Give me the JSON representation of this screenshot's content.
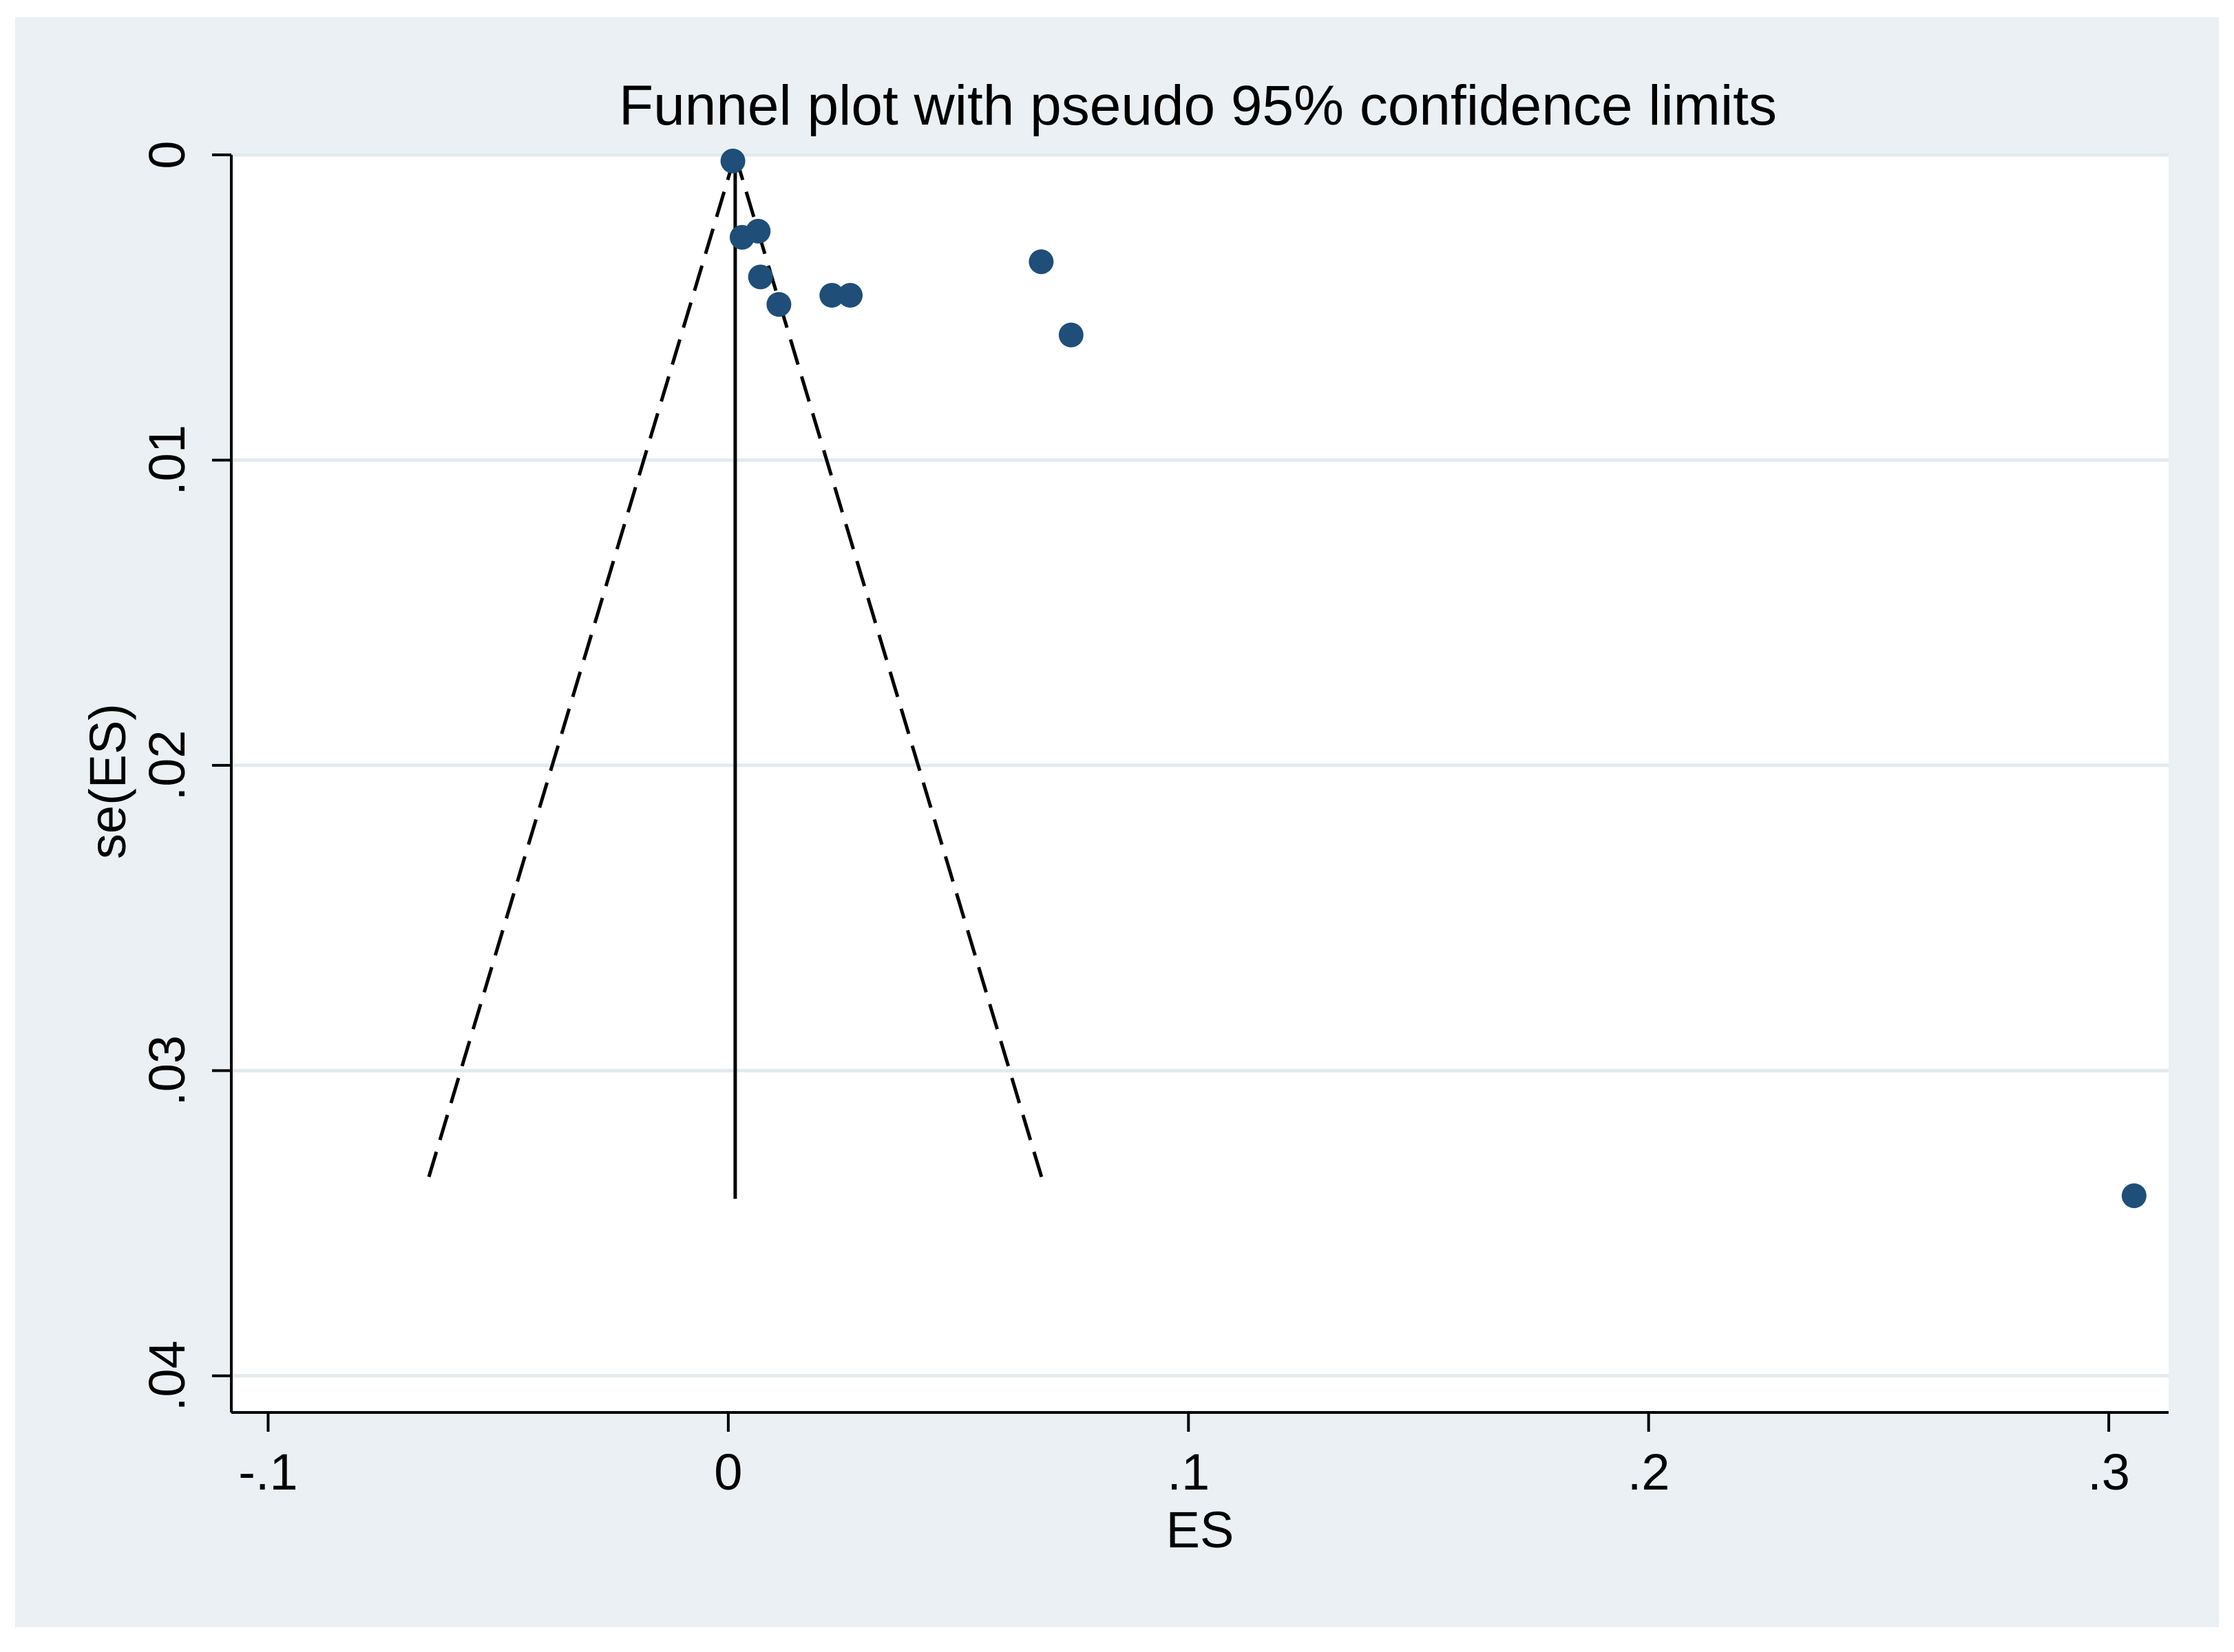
{
  "chart_data": {
    "type": "scatter",
    "title": "Funnel plot with pseudo 95% confidence limits",
    "xlabel": "ES",
    "ylabel": "se(ES)",
    "xlim": [
      -0.108,
      0.313
    ],
    "ylim": [
      0,
      0.0412
    ],
    "y_reversed": true,
    "x_ticks": [
      -0.1,
      0,
      0.1,
      0.2,
      0.3
    ],
    "x_tick_labels": [
      "-.1",
      "0",
      ".1",
      ".2",
      ".3"
    ],
    "y_ticks": [
      0,
      0.01,
      0.02,
      0.03,
      0.04
    ],
    "y_tick_labels": [
      "0",
      ".01",
      ".02",
      ".03",
      ".04"
    ],
    "grid": "horizontal",
    "legend": "none",
    "points": [
      {
        "x": 0.001,
        "y": 0.0002
      },
      {
        "x": 0.003,
        "y": 0.0027
      },
      {
        "x": 0.0065,
        "y": 0.0025
      },
      {
        "x": 0.007,
        "y": 0.004
      },
      {
        "x": 0.011,
        "y": 0.0049
      },
      {
        "x": 0.0225,
        "y": 0.0046
      },
      {
        "x": 0.0265,
        "y": 0.0046
      },
      {
        "x": 0.068,
        "y": 0.0035
      },
      {
        "x": 0.0745,
        "y": 0.0059
      },
      {
        "x": 0.3055,
        "y": 0.0341
      }
    ],
    "pooled_estimate": {
      "x": 0.0015,
      "y_from": 0,
      "y_to": 0.0342
    },
    "confidence_limits": {
      "lower": [
        {
          "x": 0.0015,
          "y": 0
        },
        {
          "x": -0.0655,
          "y": 0.0337
        }
      ],
      "upper": [
        {
          "x": 0.0015,
          "y": 0
        },
        {
          "x": 0.0685,
          "y": 0.0337
        }
      ]
    },
    "colors": {
      "outer_background": "#EAF0F3",
      "plot_background": "#FFFFFF",
      "gridline": "#E3EAEE",
      "marker": "#1F4E79",
      "lines": "#000000"
    }
  }
}
